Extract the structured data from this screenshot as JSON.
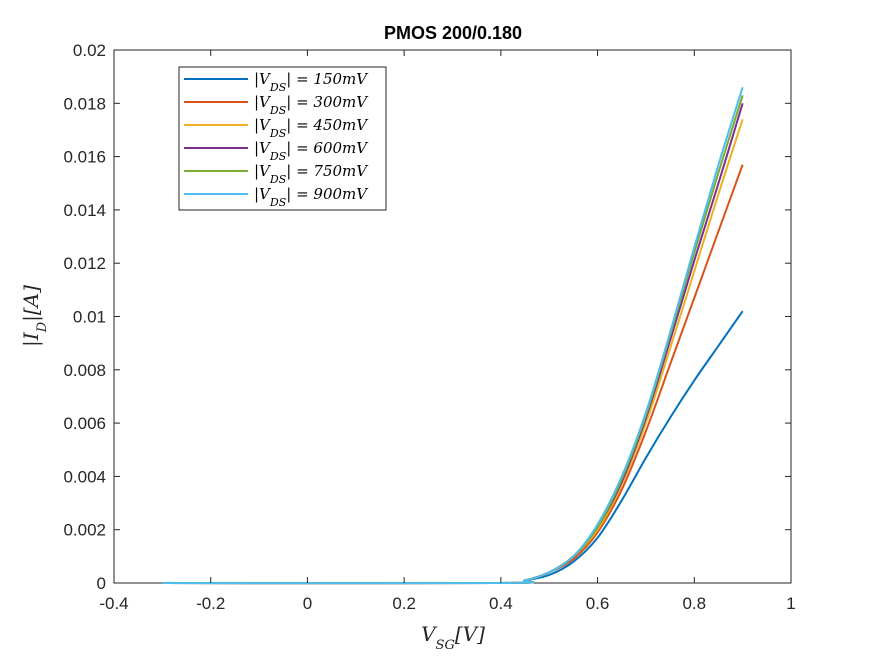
{
  "chart_data": {
    "type": "line",
    "title": "PMOS 200/0.180",
    "xlabel": "V_{SG}[V]",
    "ylabel": "|I_D|[A]",
    "xlim": [
      -0.4,
      1
    ],
    "ylim": [
      0,
      0.02
    ],
    "xticks": [
      -0.4,
      -0.2,
      0,
      0.2,
      0.4,
      0.6,
      0.8,
      1
    ],
    "xtick_labels": [
      "-0.4",
      "-0.2",
      "0",
      "0.2",
      "0.4",
      "0.6",
      "0.8",
      "1"
    ],
    "yticks": [
      0,
      0.002,
      0.004,
      0.006,
      0.008,
      0.01,
      0.012,
      0.014,
      0.016,
      0.018,
      0.02
    ],
    "ytick_labels": [
      "0",
      "0.002",
      "0.004",
      "0.006",
      "0.008",
      "0.01",
      "0.012",
      "0.014",
      "0.016",
      "0.018",
      "0.02"
    ],
    "grid": false,
    "legend_position": "top-left",
    "series": [
      {
        "name": "|V_{DS}| = 150mV",
        "color": "#0072BD",
        "x": [
          -0.3,
          0.4,
          0.45,
          0.5,
          0.55,
          0.6,
          0.65,
          0.7,
          0.75,
          0.8,
          0.85,
          0.9
        ],
        "y": [
          0,
          0,
          0.0001,
          0.0003,
          0.0008,
          0.0017,
          0.0031,
          0.0047,
          0.0062,
          0.0076,
          0.0089,
          0.0102
        ]
      },
      {
        "name": "|V_{DS}| = 300mV",
        "color": "#D95319",
        "x": [
          -0.3,
          0.4,
          0.45,
          0.5,
          0.55,
          0.6,
          0.65,
          0.7,
          0.75,
          0.8,
          0.85,
          0.9
        ],
        "y": [
          0,
          0,
          0.0001,
          0.0004,
          0.0009,
          0.0019,
          0.0035,
          0.0057,
          0.0082,
          0.0107,
          0.0132,
          0.0157
        ]
      },
      {
        "name": "|V_{DS}| = 450mV",
        "color": "#EDB120",
        "x": [
          -0.3,
          0.4,
          0.45,
          0.5,
          0.55,
          0.6,
          0.65,
          0.7,
          0.75,
          0.8,
          0.85,
          0.9
        ],
        "y": [
          0,
          0,
          0.0001,
          0.0004,
          0.001,
          0.002,
          0.0037,
          0.006,
          0.0088,
          0.0117,
          0.0146,
          0.0174
        ]
      },
      {
        "name": "|V_{DS}| = 600mV",
        "color": "#7E2F8E",
        "x": [
          -0.3,
          0.4,
          0.45,
          0.5,
          0.55,
          0.6,
          0.65,
          0.7,
          0.75,
          0.8,
          0.85,
          0.9
        ],
        "y": [
          0,
          0,
          0.0001,
          0.0004,
          0.001,
          0.0021,
          0.0038,
          0.0062,
          0.0091,
          0.0121,
          0.015,
          0.018
        ]
      },
      {
        "name": "|V_{DS}| = 750mV",
        "color": "#77AC30",
        "x": [
          -0.3,
          0.4,
          0.45,
          0.5,
          0.55,
          0.6,
          0.65,
          0.7,
          0.75,
          0.8,
          0.85,
          0.9
        ],
        "y": [
          0,
          0,
          0.0001,
          0.0004,
          0.001,
          0.0021,
          0.0039,
          0.0063,
          0.0093,
          0.0124,
          0.0154,
          0.0183
        ]
      },
      {
        "name": "|V_{DS}| = 900mV",
        "color": "#4DBEEE",
        "x": [
          -0.3,
          0.4,
          0.45,
          0.5,
          0.55,
          0.6,
          0.65,
          0.7,
          0.75,
          0.8,
          0.85,
          0.9
        ],
        "y": [
          0,
          0,
          0.0001,
          0.0004,
          0.001,
          0.0022,
          0.004,
          0.0064,
          0.0094,
          0.0126,
          0.0157,
          0.0186
        ]
      }
    ]
  }
}
